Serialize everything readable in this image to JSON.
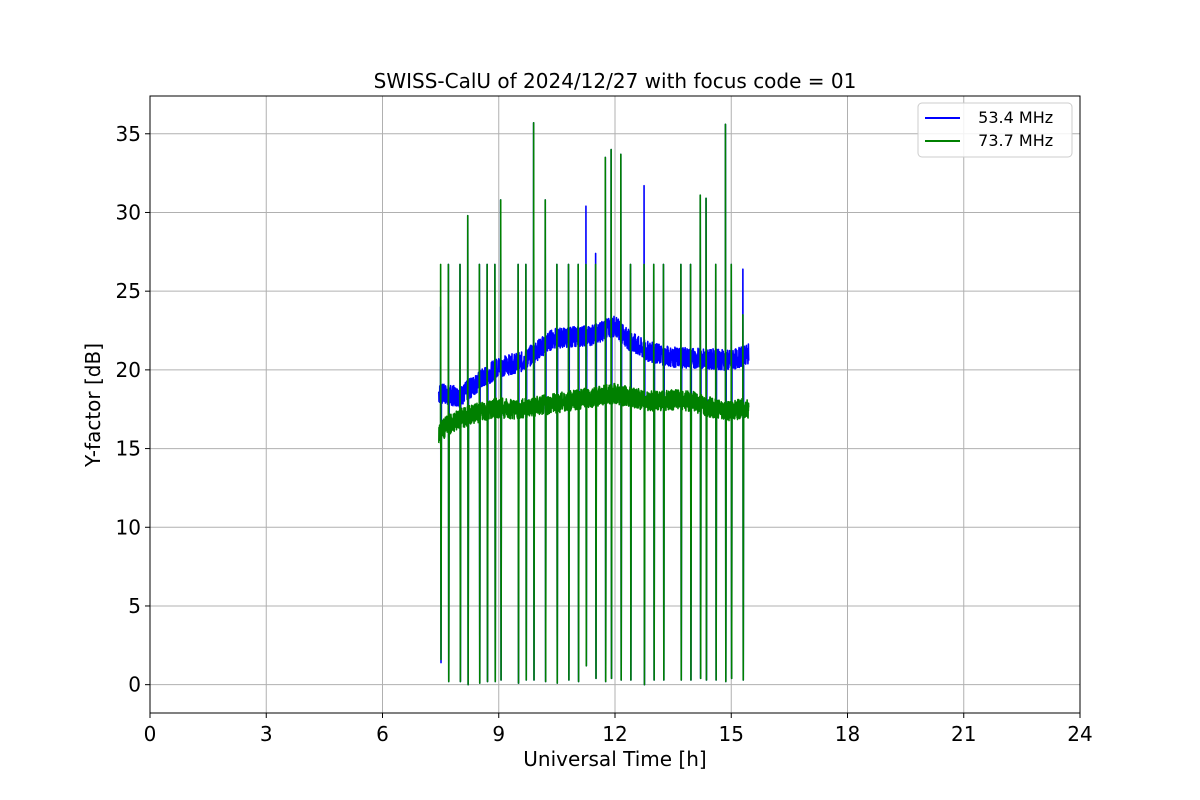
{
  "chart_data": {
    "type": "line",
    "title": "SWISS-CalU of 2024/12/27 with focus code = 01",
    "xlabel": "Universal Time [h]",
    "ylabel": "Y-factor [dB]",
    "xlim": [
      0,
      24
    ],
    "ylim": [
      -1.8,
      37.4
    ],
    "x_ticks": [
      "0",
      "3",
      "6",
      "9",
      "12",
      "15",
      "18",
      "21",
      "24"
    ],
    "y_ticks": [
      "0",
      "5",
      "10",
      "15",
      "20",
      "25",
      "30",
      "35"
    ],
    "grid": true,
    "legend_placement": "top-right",
    "series": [
      {
        "name": "  53.4 MHz",
        "color": "#0000ff",
        "baseline": [
          [
            7.45,
            18.5
          ],
          [
            8.0,
            18.3
          ],
          [
            8.6,
            19.5
          ],
          [
            9.0,
            20.2
          ],
          [
            9.6,
            20.5
          ],
          [
            10.4,
            22.0
          ],
          [
            11.4,
            22.2
          ],
          [
            12.0,
            22.8
          ],
          [
            12.4,
            21.8
          ],
          [
            12.8,
            21.2
          ],
          [
            13.5,
            20.8
          ],
          [
            14.5,
            20.7
          ],
          [
            15.0,
            20.6
          ],
          [
            15.45,
            21.0
          ]
        ],
        "spikes": [
          {
            "x": 7.5,
            "high": 24.0,
            "low": 1.4
          },
          {
            "x": 7.7,
            "high": 26.7,
            "low": 0.2
          },
          {
            "x": 8.0,
            "high": 26.7,
            "low": 0.2
          },
          {
            "x": 8.2,
            "high": 29.8,
            "low": 0.0
          },
          {
            "x": 8.5,
            "high": 26.7,
            "low": 0.1
          },
          {
            "x": 8.7,
            "high": 26.7,
            "low": 0.2
          },
          {
            "x": 8.9,
            "high": 26.7,
            "low": 0.2
          },
          {
            "x": 9.05,
            "high": 30.8,
            "low": 0.3
          },
          {
            "x": 9.5,
            "high": 26.7,
            "low": 0.1
          },
          {
            "x": 9.7,
            "high": 26.7,
            "low": 0.3
          },
          {
            "x": 9.9,
            "high": 35.7,
            "low": 0.3
          },
          {
            "x": 10.2,
            "high": 30.8,
            "low": 0.2
          },
          {
            "x": 10.5,
            "high": 26.7,
            "low": 0.1
          },
          {
            "x": 10.8,
            "high": 26.7,
            "low": 0.3
          },
          {
            "x": 11.05,
            "high": 26.7,
            "low": 0.2
          },
          {
            "x": 11.25,
            "high": 30.4,
            "low": 1.2
          },
          {
            "x": 11.5,
            "high": 27.4,
            "low": 0.4
          },
          {
            "x": 11.75,
            "high": 33.5,
            "low": 0.2
          },
          {
            "x": 11.9,
            "high": 34.0,
            "low": 0.4
          },
          {
            "x": 12.15,
            "high": 33.7,
            "low": 0.3
          },
          {
            "x": 12.4,
            "high": 26.7,
            "low": 0.3
          },
          {
            "x": 12.75,
            "high": 31.7,
            "low": 0.0
          },
          {
            "x": 13.0,
            "high": 26.7,
            "low": 0.3
          },
          {
            "x": 13.25,
            "high": 26.7,
            "low": 0.3
          },
          {
            "x": 13.7,
            "high": 26.7,
            "low": 0.3
          },
          {
            "x": 13.95,
            "high": 26.7,
            "low": 0.3
          },
          {
            "x": 14.2,
            "high": 31.1,
            "low": 0.4
          },
          {
            "x": 14.35,
            "high": 30.9,
            "low": 0.3
          },
          {
            "x": 14.6,
            "high": 26.7,
            "low": 0.3
          },
          {
            "x": 14.85,
            "high": 35.6,
            "low": 0.2
          },
          {
            "x": 15.0,
            "high": 26.7,
            "low": 0.4
          },
          {
            "x": 15.3,
            "high": 26.4,
            "low": 0.3
          }
        ]
      },
      {
        "name": "  73.7 MHz",
        "color": "#008000",
        "baseline": [
          [
            7.45,
            16.0
          ],
          [
            7.7,
            16.5
          ],
          [
            8.1,
            17.0
          ],
          [
            8.5,
            17.3
          ],
          [
            9.0,
            17.6
          ],
          [
            9.5,
            17.5
          ],
          [
            10.0,
            17.7
          ],
          [
            10.5,
            17.9
          ],
          [
            11.0,
            18.1
          ],
          [
            11.5,
            18.3
          ],
          [
            12.0,
            18.5
          ],
          [
            12.5,
            18.2
          ],
          [
            13.0,
            18.0
          ],
          [
            13.5,
            18.1
          ],
          [
            14.0,
            18.0
          ],
          [
            14.5,
            17.6
          ],
          [
            15.0,
            17.4
          ],
          [
            15.45,
            17.6
          ]
        ],
        "spikes": [
          {
            "x": 7.5,
            "high": 26.7,
            "low": 1.6
          },
          {
            "x": 7.7,
            "high": 26.7,
            "low": 0.2
          },
          {
            "x": 8.0,
            "high": 26.7,
            "low": 0.2
          },
          {
            "x": 8.2,
            "high": 29.8,
            "low": 0.0
          },
          {
            "x": 8.5,
            "high": 26.7,
            "low": 0.1
          },
          {
            "x": 8.7,
            "high": 26.7,
            "low": 0.2
          },
          {
            "x": 8.9,
            "high": 26.7,
            "low": 0.2
          },
          {
            "x": 9.05,
            "high": 30.8,
            "low": 0.3
          },
          {
            "x": 9.5,
            "high": 26.7,
            "low": 0.1
          },
          {
            "x": 9.7,
            "high": 26.7,
            "low": 0.3
          },
          {
            "x": 9.9,
            "high": 35.7,
            "low": 0.3
          },
          {
            "x": 10.2,
            "high": 30.8,
            "low": 0.2
          },
          {
            "x": 10.5,
            "high": 26.7,
            "low": 0.1
          },
          {
            "x": 10.8,
            "high": 26.7,
            "low": 0.3
          },
          {
            "x": 11.05,
            "high": 26.7,
            "low": 0.2
          },
          {
            "x": 11.25,
            "high": 26.7,
            "low": 1.2
          },
          {
            "x": 11.5,
            "high": 26.7,
            "low": 0.4
          },
          {
            "x": 11.75,
            "high": 33.5,
            "low": 0.2
          },
          {
            "x": 11.9,
            "high": 34.0,
            "low": 0.4
          },
          {
            "x": 12.15,
            "high": 33.7,
            "low": 0.3
          },
          {
            "x": 12.4,
            "high": 26.7,
            "low": 0.3
          },
          {
            "x": 12.75,
            "high": 26.7,
            "low": 0.0
          },
          {
            "x": 13.0,
            "high": 26.7,
            "low": 0.3
          },
          {
            "x": 13.25,
            "high": 26.7,
            "low": 0.3
          },
          {
            "x": 13.7,
            "high": 26.7,
            "low": 0.3
          },
          {
            "x": 13.95,
            "high": 26.7,
            "low": 0.3
          },
          {
            "x": 14.2,
            "high": 31.1,
            "low": 0.4
          },
          {
            "x": 14.35,
            "high": 30.9,
            "low": 0.3
          },
          {
            "x": 14.6,
            "high": 26.7,
            "low": 0.3
          },
          {
            "x": 14.85,
            "high": 35.6,
            "low": 0.2
          },
          {
            "x": 15.0,
            "high": 26.7,
            "low": 0.4
          },
          {
            "x": 15.3,
            "high": 23.5,
            "low": 0.3
          }
        ]
      }
    ]
  }
}
